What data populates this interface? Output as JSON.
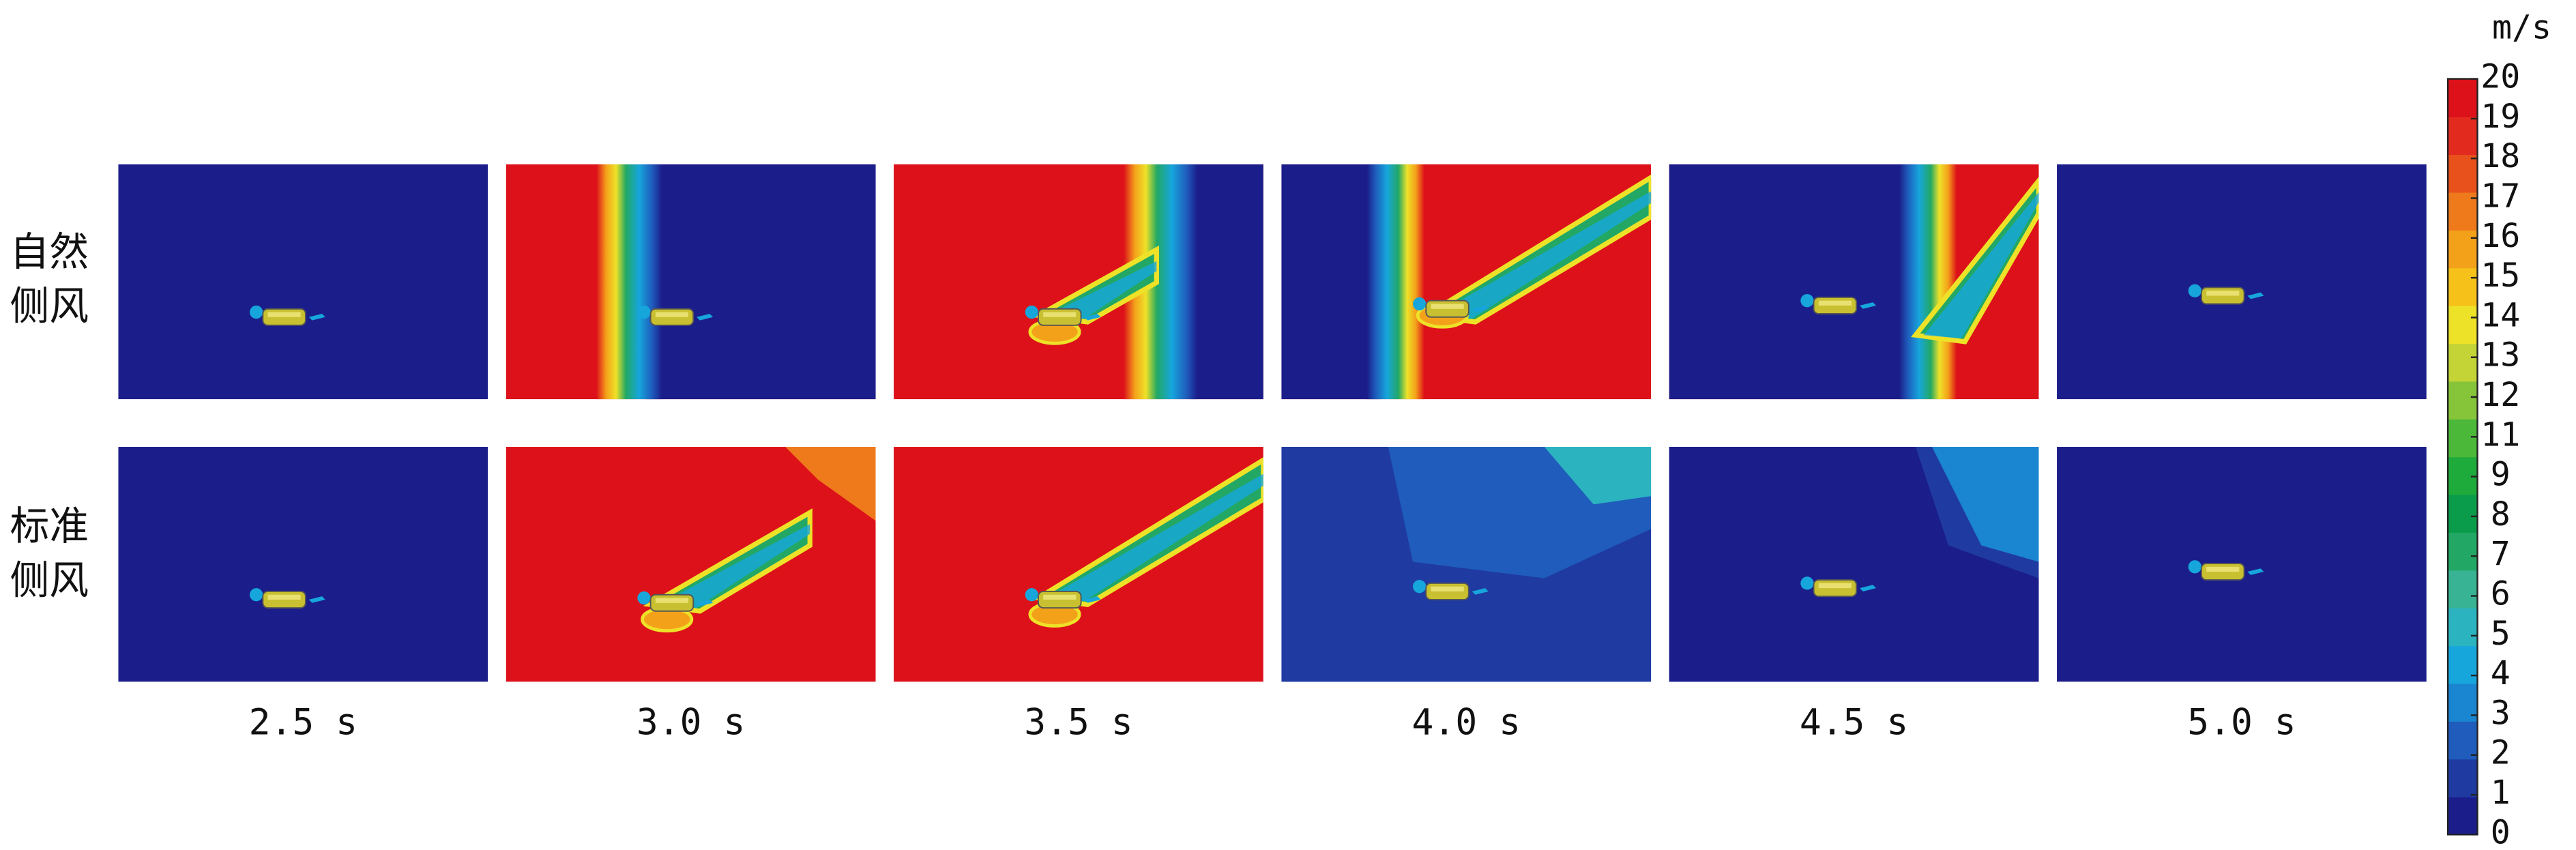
{
  "row_labels": [
    [
      "自然",
      "侧风"
    ],
    [
      "标准",
      "侧风"
    ]
  ],
  "time_labels": [
    "2.5 s",
    "3.0 s",
    "3.5 s",
    "4.0 s",
    "4.5 s",
    "5.0 s"
  ],
  "colorbar": {
    "unit": "m/s",
    "ticks": [
      0,
      1,
      2,
      3,
      4,
      5,
      6,
      7,
      8,
      9,
      11,
      12,
      13,
      14,
      15,
      16,
      17,
      18,
      19,
      20
    ],
    "colors": [
      "#1b1d8a",
      "#1f3aa0",
      "#1f5cbc",
      "#1a85d0",
      "#16a6dc",
      "#2bb4c0",
      "#38b394",
      "#22a864",
      "#0a9c4a",
      "#1faa3c",
      "#4cb83a",
      "#86c43a",
      "#c4d437",
      "#eee228",
      "#f6c21a",
      "#f4a11a",
      "#ee7a1c",
      "#e8501c",
      "#e22a1e",
      "#dd1119"
    ]
  }
}
